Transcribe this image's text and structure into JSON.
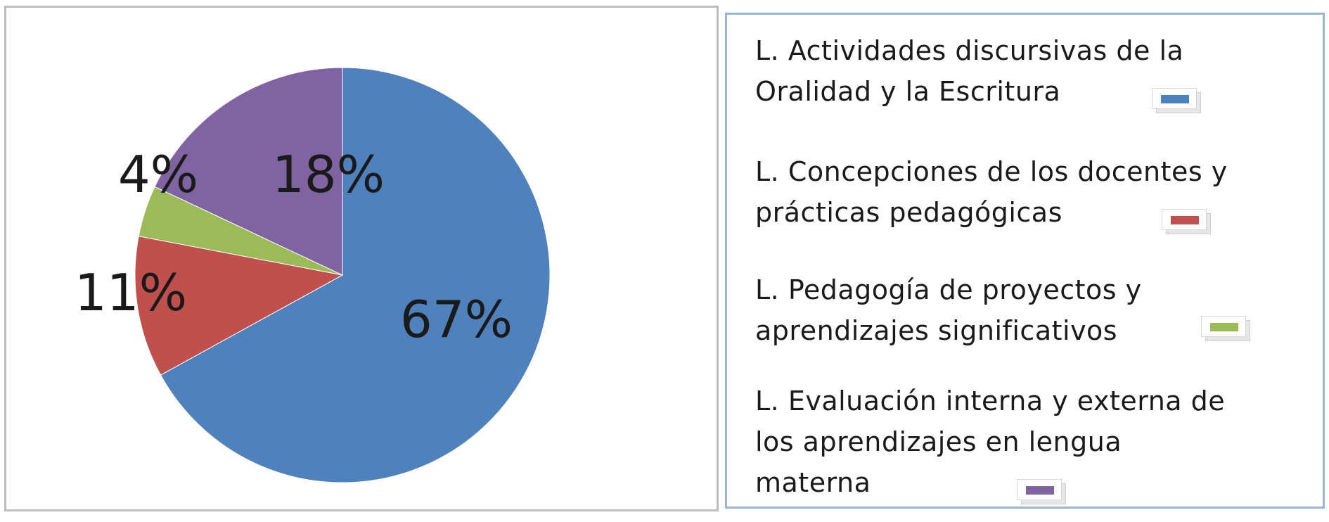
{
  "chart_data": {
    "type": "pie",
    "categories": [
      "L. Actividades discursivas de la Oralidad y la Escritura",
      "L. Concepciones de los docentes y prácticas pedagógicas",
      "L. Pedagogía de proyectos y aprendizajes significativos",
      "L. Evaluación interna y externa de los aprendizajes en lengua materna"
    ],
    "values": [
      67,
      11,
      4,
      18
    ],
    "labels": [
      "67%",
      "11%",
      "4%",
      "18%"
    ],
    "colors": [
      "#4f81bd",
      "#c0504d",
      "#9bbb59",
      "#8064a2"
    ],
    "legend_position": "right"
  },
  "legend": {
    "items": [
      {
        "text": "L. Actividades discursivas de la\nOralidad y la Escritura",
        "color": "#4f81bd"
      },
      {
        "text": "L. Concepciones de los docentes y\nprácticas pedagógicas",
        "color": "#c0504d"
      },
      {
        "text": "L. Pedagogía de proyectos y\naprendizajes  significativos",
        "color": "#9bbb59"
      },
      {
        "text": "L. Evaluación interna y  externa de\nlos  aprendizajes  en lengua\nmaterna",
        "color": "#8064a2"
      }
    ]
  }
}
